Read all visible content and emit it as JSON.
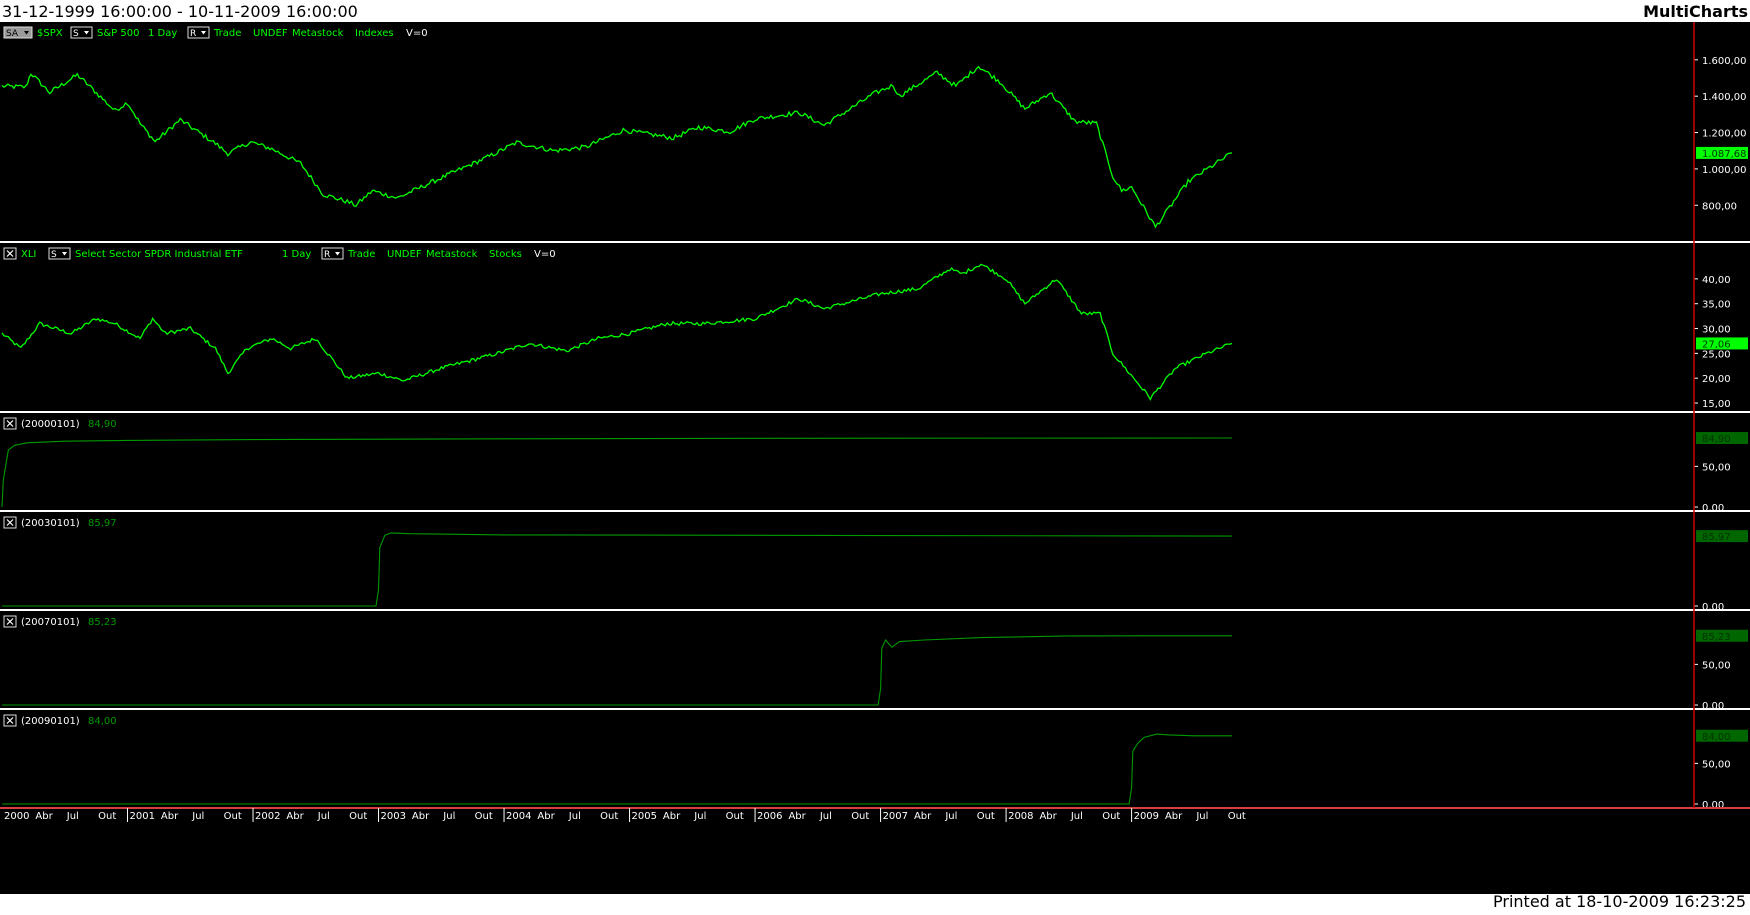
{
  "header": {
    "date_range": "31-12-1999 16:00:00 - 10-11-2009 16:00:00",
    "app_name": "MultiCharts"
  },
  "footer": {
    "printed": "Printed at 18-10-2009 16:23:25"
  },
  "colors": {
    "background": "#000000",
    "price_line": "#00ff00",
    "indicator_line": "#009900",
    "separator": "#ffffff",
    "axis_line": "#cc0000",
    "badge_bright": "#00ff00",
    "badge_dark": "#006600"
  },
  "time_axis": {
    "labels": [
      "2000",
      "Abr",
      "Jul",
      "Out",
      "2001",
      "Abr",
      "Jul",
      "Out",
      "2002",
      "Abr",
      "Jul",
      "Out",
      "2003",
      "Abr",
      "Jul",
      "Out",
      "2004",
      "Abr",
      "Jul",
      "Out",
      "2005",
      "Abr",
      "Jul",
      "Out",
      "2006",
      "Abr",
      "Jul",
      "Out",
      "2007",
      "Abr",
      "Jul",
      "Out",
      "2008",
      "Abr",
      "Jul",
      "Out",
      "2009",
      "Abr",
      "Jul",
      "Out"
    ],
    "boxed_labels": [
      "2000",
      "2001",
      "2002",
      "2003",
      "2004",
      "2005",
      "2006",
      "2007",
      "2008",
      "2009"
    ]
  },
  "chart_data": [
    {
      "type": "line",
      "header": {
        "tags": [
          "SA",
          "S",
          "R"
        ],
        "items": [
          "$SPX",
          "S&P 500",
          "1 Day",
          "Trade",
          "UNDEF",
          "Metastock",
          "Indexes",
          "V=0"
        ]
      },
      "y_ticks": [
        "1.600,00",
        "1.400,00",
        "1.200,00",
        "1.000,00",
        "800,00"
      ],
      "ylim": [
        620,
        1720
      ],
      "last_value_label": "1.087,68",
      "badge": "bright",
      "series": [
        {
          "x": [
            2000.0,
            2000.19,
            2000.23,
            2000.38,
            2000.6,
            2000.69,
            2000.9,
            2001.0,
            2001.1,
            2001.22,
            2001.42,
            2001.7,
            2001.8,
            2001.98,
            2002.15,
            2002.38,
            2002.56,
            2002.75,
            2002.82,
            2002.95,
            2003.15,
            2003.45,
            2003.9,
            2004.1,
            2004.4,
            2004.65,
            2004.95,
            2005.35,
            2005.55,
            2005.8,
            2006.0,
            2006.35,
            2006.55,
            2006.95,
            2007.1,
            2007.15,
            2007.45,
            2007.6,
            2007.78,
            2007.95,
            2008.15,
            2008.35,
            2008.55,
            2008.72,
            2008.85,
            2008.92,
            2009.0,
            2009.19,
            2009.45,
            2009.8
          ],
          "y": [
            1455,
            1450,
            1527,
            1420,
            1517,
            1460,
            1320,
            1366,
            1250,
            1150,
            1270,
            1140,
            1085,
            1148,
            1110,
            1030,
            860,
            820,
            800,
            880,
            840,
            935,
            1075,
            1145,
            1100,
            1120,
            1213,
            1170,
            1230,
            1205,
            1275,
            1310,
            1240,
            1415,
            1460,
            1400,
            1530,
            1455,
            1565,
            1480,
            1330,
            1420,
            1260,
            1250,
            960,
            880,
            900,
            680,
            930,
            1088
          ]
        }
      ]
    },
    {
      "type": "line",
      "header": {
        "tags": [
          "X",
          "S",
          "R"
        ],
        "items": [
          "XLI",
          "Select Sector SPDR Industrial ETF",
          "1 Day",
          "Trade",
          "UNDEF",
          "Metastock",
          "Stocks",
          "V=0"
        ]
      },
      "y_ticks": [
        "40,00",
        "35,00",
        "30,00",
        "25,00",
        "20,00",
        "15,00"
      ],
      "ylim": [
        14,
        44
      ],
      "last_value_label": "27,06",
      "badge": "bright",
      "series": [
        {
          "x": [
            2000.0,
            2000.15,
            2000.3,
            2000.55,
            2000.75,
            2000.9,
            2001.1,
            2001.2,
            2001.3,
            2001.5,
            2001.7,
            2001.8,
            2001.95,
            2002.15,
            2002.3,
            2002.5,
            2002.75,
            2003.0,
            2003.2,
            2003.5,
            2003.95,
            2004.2,
            2004.5,
            2004.75,
            2005.0,
            2005.3,
            2005.6,
            2006.0,
            2006.35,
            2006.55,
            2007.0,
            2007.3,
            2007.55,
            2007.65,
            2007.8,
            2008.0,
            2008.15,
            2008.4,
            2008.6,
            2008.75,
            2008.85,
            2008.95,
            2009.15,
            2009.35,
            2009.6,
            2009.8
          ],
          "y": [
            29,
            26,
            31,
            29,
            32,
            31,
            28,
            32,
            29,
            30,
            26,
            21,
            26,
            28,
            26,
            28,
            20,
            21,
            19.5,
            22,
            25,
            27,
            25.5,
            28,
            29,
            31,
            31,
            32,
            36,
            34,
            37,
            38,
            42,
            41,
            43,
            40,
            35,
            40,
            33,
            33,
            25,
            22,
            16,
            22,
            25,
            27
          ]
        }
      ]
    },
    {
      "type": "line",
      "header": {
        "tags": [
          "X"
        ],
        "items": [
          "(20000101)"
        ]
      },
      "value_text": "84,90",
      "y_ticks": [
        "50,00",
        "0,00"
      ],
      "ylim": [
        0,
        96
      ],
      "last_value_label": "84,90",
      "badge": "dark",
      "series": [
        {
          "x": [
            2000.0,
            2000.01,
            2000.05,
            2000.1,
            2000.2,
            2000.5,
            2001.0,
            2002.0,
            2004.0,
            2006.0,
            2009.8
          ],
          "y": [
            0,
            33,
            70,
            76,
            79,
            81,
            82,
            83,
            84,
            84.5,
            84.9
          ]
        }
      ]
    },
    {
      "type": "line",
      "header": {
        "tags": [
          "X"
        ],
        "items": [
          "(20030101)"
        ]
      },
      "value_text": "85,97",
      "y_ticks": [
        "0,00"
      ],
      "ylim": [
        0,
        96
      ],
      "last_value_label": "85,97",
      "badge": "dark",
      "series": [
        {
          "x": [
            2000.0,
            2002.98,
            2003.0,
            2003.01,
            2003.05,
            2003.1,
            2003.25,
            2004.0,
            2006.0,
            2009.8
          ],
          "y": [
            0,
            0,
            20,
            72,
            87,
            90,
            89,
            87.5,
            87,
            86
          ]
        }
      ]
    },
    {
      "type": "line",
      "header": {
        "tags": [
          "X"
        ],
        "items": [
          "(20070101)"
        ]
      },
      "value_text": "85,23",
      "y_ticks": [
        "50,00",
        "0,00"
      ],
      "ylim": [
        0,
        96
      ],
      "last_value_label": "85,23",
      "badge": "dark",
      "series": [
        {
          "x": [
            2000.0,
            2006.98,
            2007.0,
            2007.01,
            2007.04,
            2007.09,
            2007.15,
            2007.35,
            2007.8,
            2008.5,
            2009.8
          ],
          "y": [
            0,
            0,
            20,
            70,
            80,
            71,
            78,
            80,
            83,
            85,
            85.2
          ]
        }
      ]
    },
    {
      "type": "line",
      "header": {
        "tags": [
          "X"
        ],
        "items": [
          "(20090101)"
        ]
      },
      "value_text": "84,00",
      "y_ticks": [
        "50,00",
        "0,00"
      ],
      "ylim": [
        0,
        96
      ],
      "last_value_label": "84,00",
      "badge": "dark",
      "series": [
        {
          "x": [
            2000.0,
            2008.98,
            2009.0,
            2009.01,
            2009.05,
            2009.1,
            2009.2,
            2009.3,
            2009.5,
            2009.8
          ],
          "y": [
            0,
            0,
            20,
            65,
            75,
            82,
            86,
            85,
            84,
            84
          ]
        }
      ]
    }
  ]
}
